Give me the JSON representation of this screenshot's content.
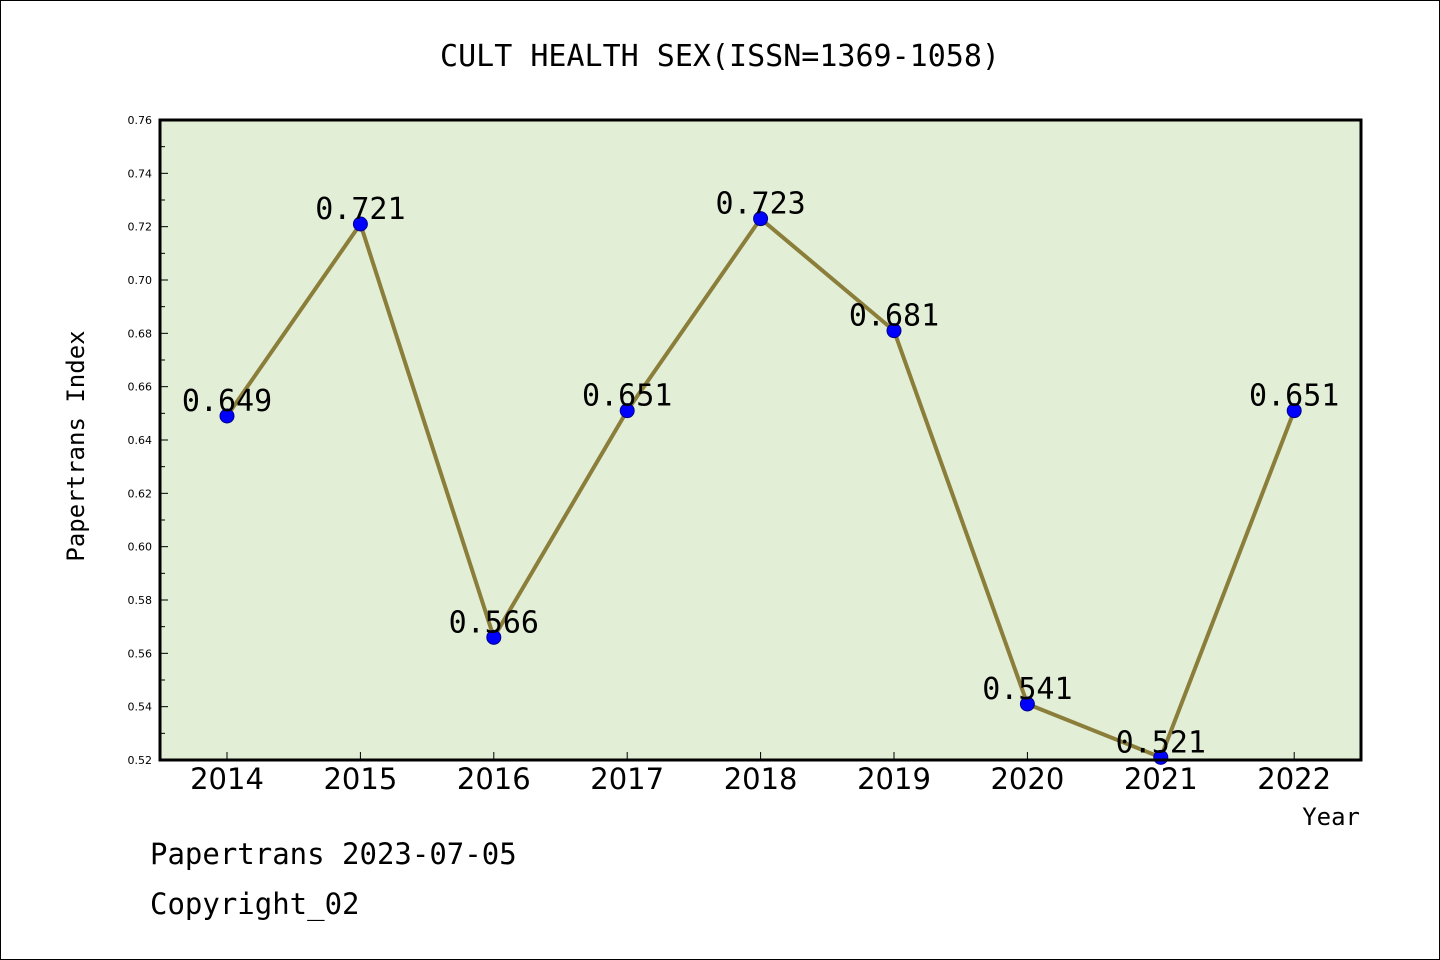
{
  "chart_data": {
    "type": "line",
    "title": "CULT HEALTH SEX(ISSN=1369-1058)",
    "xlabel": "Year",
    "ylabel": "Papertrans Index",
    "x": [
      "2014",
      "2015",
      "2016",
      "2017",
      "2018",
      "2019",
      "2020",
      "2021",
      "2022"
    ],
    "values": [
      0.649,
      0.721,
      0.566,
      0.651,
      0.723,
      0.681,
      0.541,
      0.521,
      0.651
    ],
    "data_labels": [
      "0.649",
      "0.721",
      "0.566",
      "0.651",
      "0.723",
      "0.681",
      "0.541",
      "0.521",
      "0.651"
    ],
    "ylim": [
      0.52,
      0.76
    ],
    "yticks": [
      "0.52",
      "0.54",
      "0.56",
      "0.58",
      "0.60",
      "0.62",
      "0.64",
      "0.66",
      "0.68",
      "0.70",
      "0.72",
      "0.74",
      "0.76"
    ],
    "grid": false,
    "colors": {
      "line": "#8b7d3a",
      "marker": "#0000ff",
      "plot_bg": "#e2efd6"
    }
  },
  "footer": {
    "line1": "Papertrans 2023-07-05",
    "line2": "Copyright_02"
  }
}
